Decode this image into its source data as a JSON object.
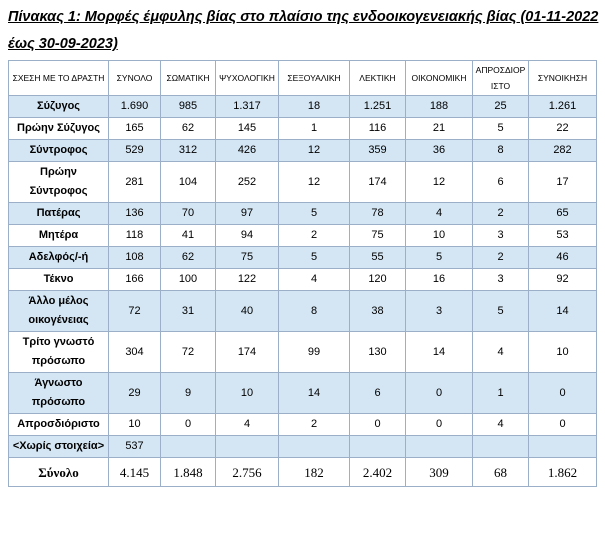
{
  "header": {
    "title": "Πίνακας 1: Μορφές έμφυλης βίας στο πλαίσιο της ενδοοικογενειακής βίας (01-11-2022 έως 30-09-2023)"
  },
  "table": {
    "columns": [
      "ΣΧΕΣΗ ΜΕ ΤΟ ΔΡΑΣΤΗ",
      "ΣΥΝΟΛΟ",
      "ΣΩΜΑΤΙΚΗ",
      "ΨΥΧΟΛΟΓΙΚΗ",
      "ΣΕΞΟΥΑΛΙΚΗ",
      "ΛΕΚΤΙΚΗ",
      "ΟΙΚΟΝΟΜΙΚΗ",
      "ΑΠΡΟΣΔΙΟΡΙΣΤΟ",
      "ΣΥΝΟΙΚΗΣΗ"
    ],
    "rows": [
      {
        "label": "Σύζυγος",
        "values": [
          "1.690",
          "985",
          "1.317",
          "18",
          "1.251",
          "188",
          "25",
          "1.261"
        ]
      },
      {
        "label": "Πρώην Σύζυγος",
        "values": [
          "165",
          "62",
          "145",
          "1",
          "116",
          "21",
          "5",
          "22"
        ]
      },
      {
        "label": "Σύντροφος",
        "values": [
          "529",
          "312",
          "426",
          "12",
          "359",
          "36",
          "8",
          "282"
        ]
      },
      {
        "label": "Πρώην Σύντροφος",
        "values": [
          "281",
          "104",
          "252",
          "12",
          "174",
          "12",
          "6",
          "17"
        ]
      },
      {
        "label": "Πατέρας",
        "values": [
          "136",
          "70",
          "97",
          "5",
          "78",
          "4",
          "2",
          "65"
        ]
      },
      {
        "label": "Μητέρα",
        "values": [
          "118",
          "41",
          "94",
          "2",
          "75",
          "10",
          "3",
          "53"
        ]
      },
      {
        "label": "Αδελφός/-ή",
        "values": [
          "108",
          "62",
          "75",
          "5",
          "55",
          "5",
          "2",
          "46"
        ]
      },
      {
        "label": "Τέκνο",
        "values": [
          "166",
          "100",
          "122",
          "4",
          "120",
          "16",
          "3",
          "92"
        ]
      },
      {
        "label": "Άλλο μέλος οικογένειας",
        "values": [
          "72",
          "31",
          "40",
          "8",
          "38",
          "3",
          "5",
          "14"
        ]
      },
      {
        "label": "Τρίτο γνωστό πρόσωπο",
        "values": [
          "304",
          "72",
          "174",
          "99",
          "130",
          "14",
          "4",
          "10"
        ]
      },
      {
        "label": "Άγνωστο πρόσωπο",
        "values": [
          "29",
          "9",
          "10",
          "14",
          "6",
          "0",
          "1",
          "0"
        ]
      },
      {
        "label": "Απροσδιόριστο",
        "values": [
          "10",
          "0",
          "4",
          "2",
          "0",
          "0",
          "4",
          "0"
        ]
      },
      {
        "label": "<Χωρίς στοιχεία>",
        "values": [
          "537"
        ]
      },
      {
        "label": "Σύνολο",
        "values": [
          "4.145",
          "1.848",
          "2.756",
          "182",
          "2.402",
          "309",
          "68",
          "1.862"
        ]
      }
    ]
  }
}
